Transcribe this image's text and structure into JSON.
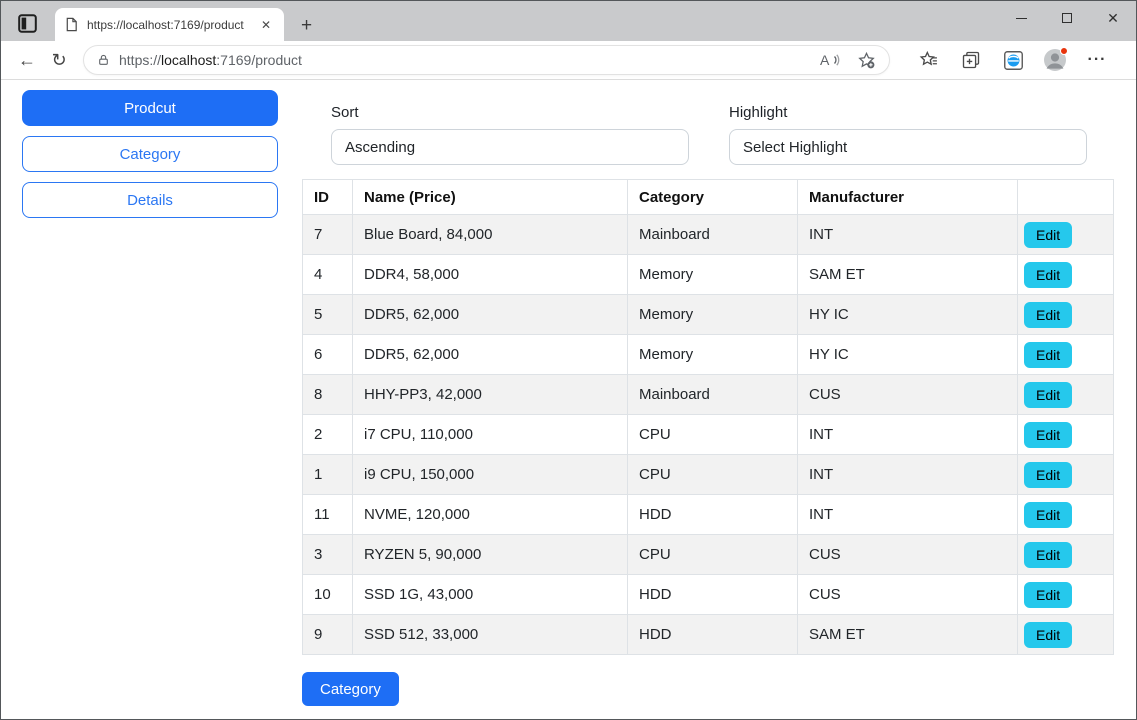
{
  "colors": {
    "primary_blue": "#1e6ef5",
    "edit_cyan": "#25c8ec",
    "row_stripe": "#f2f2f2",
    "table_border": "#dee2e6",
    "titlebar_gray": "#c9cacc"
  },
  "browser": {
    "tab_title": "https://localhost:7169/product",
    "url": {
      "scheme": "https://",
      "host": "localhost",
      "rest": ":7169/product"
    }
  },
  "sidebar": {
    "buttons": [
      {
        "label": "Prodcut"
      },
      {
        "label": "Category"
      },
      {
        "label": "Details"
      }
    ]
  },
  "filters": {
    "sort": {
      "label": "Sort",
      "value": "Ascending"
    },
    "highlight": {
      "label": "Highlight",
      "value": "Select Highlight"
    }
  },
  "table": {
    "headers": [
      "ID",
      "Name (Price)",
      "Category",
      "Manufacturer",
      ""
    ],
    "edit_label": "Edit",
    "rows": [
      {
        "id": "7",
        "name": "Blue Board, 84,000",
        "category": "Mainboard",
        "manufacturer": "INT"
      },
      {
        "id": "4",
        "name": "DDR4, 58,000",
        "category": "Memory",
        "manufacturer": "SAM ET"
      },
      {
        "id": "5",
        "name": "DDR5, 62,000",
        "category": "Memory",
        "manufacturer": "HY IC"
      },
      {
        "id": "6",
        "name": "DDR5, 62,000",
        "category": "Memory",
        "manufacturer": "HY IC"
      },
      {
        "id": "8",
        "name": "HHY-PP3, 42,000",
        "category": "Mainboard",
        "manufacturer": "CUS"
      },
      {
        "id": "2",
        "name": "i7 CPU, 110,000",
        "category": "CPU",
        "manufacturer": "INT"
      },
      {
        "id": "1",
        "name": "i9 CPU, 150,000",
        "category": "CPU",
        "manufacturer": "INT"
      },
      {
        "id": "11",
        "name": "NVME, 120,000",
        "category": "HDD",
        "manufacturer": "INT"
      },
      {
        "id": "3",
        "name": "RYZEN 5, 90,000",
        "category": "CPU",
        "manufacturer": "CUS"
      },
      {
        "id": "10",
        "name": "SSD 1G, 43,000",
        "category": "HDD",
        "manufacturer": "CUS"
      },
      {
        "id": "9",
        "name": "SSD 512, 33,000",
        "category": "HDD",
        "manufacturer": "SAM ET"
      }
    ]
  },
  "footer": {
    "category_button": "Category"
  }
}
